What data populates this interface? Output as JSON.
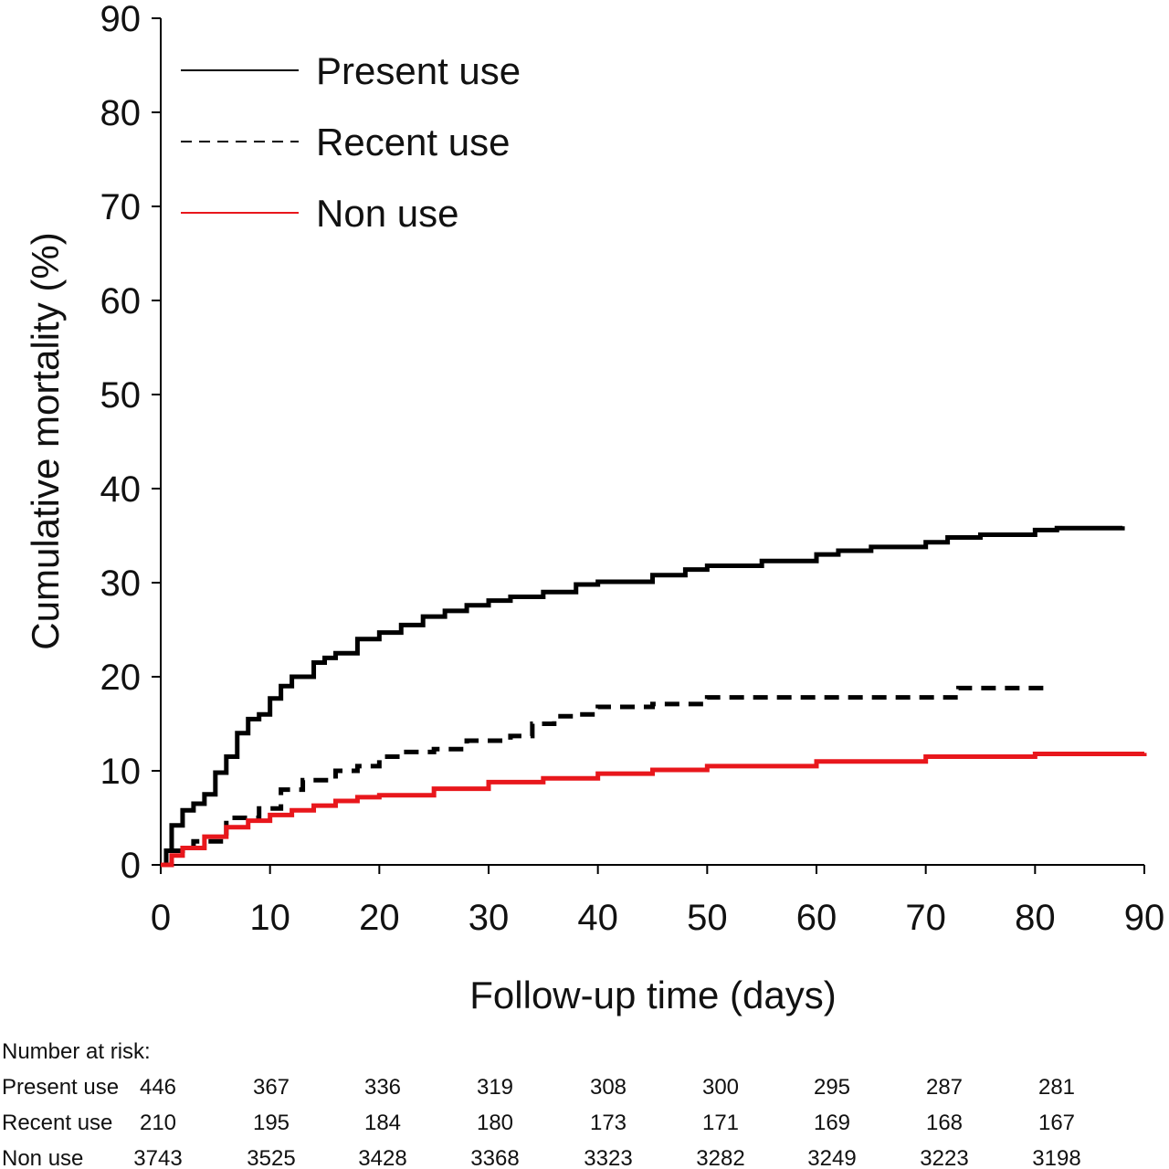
{
  "chart_data": {
    "type": "line",
    "xlabel": "Follow-up time (days)",
    "ylabel": "Cumulative mortality (%)",
    "xlim": [
      0,
      90
    ],
    "ylim": [
      0,
      90
    ],
    "xticks": [
      "0",
      "10",
      "20",
      "30",
      "40",
      "50",
      "60",
      "70",
      "80",
      "90"
    ],
    "yticks": [
      "0",
      "10",
      "20",
      "30",
      "40",
      "50",
      "60",
      "70",
      "80",
      "90"
    ],
    "grid": false,
    "legend_position": "top-left",
    "step": true,
    "series": [
      {
        "name": "Present use",
        "color": "#000000",
        "dash": "solid",
        "x": [
          0,
          0.5,
          1,
          2,
          3,
          4,
          5,
          6,
          7,
          8,
          9,
          10,
          11,
          12,
          14,
          15,
          16,
          18,
          20,
          22,
          24,
          26,
          28,
          30,
          32,
          35,
          38,
          40,
          45,
          48,
          50,
          55,
          60,
          62,
          65,
          70,
          72,
          75,
          80,
          82,
          88
        ],
        "y": [
          0,
          1.5,
          4.2,
          5.8,
          6.5,
          7.5,
          9.8,
          11.5,
          14,
          15.5,
          16,
          17.7,
          19,
          20,
          21.5,
          22,
          22.5,
          24,
          24.7,
          25.5,
          26.4,
          27,
          27.6,
          28.1,
          28.5,
          29,
          29.8,
          30.1,
          30.8,
          31.4,
          31.8,
          32.3,
          33,
          33.4,
          33.8,
          34.3,
          34.8,
          35.1,
          35.6,
          35.8,
          36
        ]
      },
      {
        "name": "Recent use",
        "color": "#000000",
        "dash": "dashed",
        "x": [
          0,
          1,
          3,
          6,
          9,
          11,
          13,
          16,
          18,
          20,
          22,
          25,
          28,
          32,
          34,
          36,
          38,
          40,
          45,
          50,
          60,
          73,
          81
        ],
        "y": [
          0,
          1.5,
          2.5,
          5,
          6,
          8,
          9,
          10,
          10.5,
          11.5,
          12,
          12.3,
          13.2,
          13.7,
          15,
          15.8,
          16,
          16.8,
          17.1,
          17.8,
          17.8,
          18.8,
          18.8
        ]
      },
      {
        "name": "Non use",
        "color": "#e8171c",
        "dash": "solid",
        "x": [
          0,
          1,
          2,
          4,
          6,
          8,
          10,
          12,
          14,
          16,
          18,
          20,
          25,
          30,
          35,
          40,
          45,
          50,
          60,
          70,
          80,
          90
        ],
        "y": [
          0,
          1,
          1.8,
          3,
          4,
          4.7,
          5.3,
          5.8,
          6.3,
          6.8,
          7.2,
          7.4,
          8.1,
          8.8,
          9.2,
          9.7,
          10.1,
          10.5,
          11.0,
          11.5,
          11.8,
          11.9
        ]
      }
    ],
    "risk_table": {
      "title": "Number at risk:",
      "rows": [
        {
          "label": "Present use",
          "values": [
            "446",
            "367",
            "336",
            "319",
            "308",
            "300",
            "295",
            "287",
            "281"
          ]
        },
        {
          "label": "Recent use",
          "values": [
            "210",
            "195",
            "184",
            "180",
            "173",
            "171",
            "169",
            "168",
            "167"
          ]
        },
        {
          "label": "Non use",
          "values": [
            "3743",
            "3525",
            "3428",
            "3368",
            "3323",
            "3282",
            "3249",
            "3223",
            "3198"
          ]
        }
      ]
    }
  }
}
